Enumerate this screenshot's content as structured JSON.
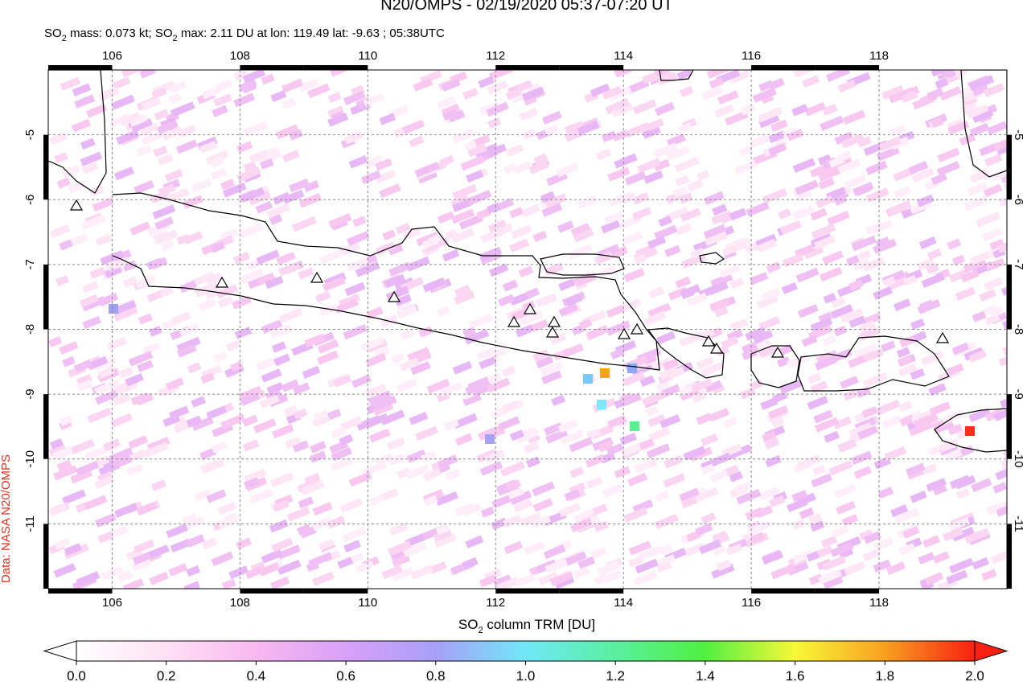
{
  "title": "N20/OMPS - 02/19/2020 05:37-07:20 UT",
  "subtitle": [
    "SO",
    "2",
    " mass: 0.073 kt; SO",
    "2",
    " max: 2.11 DU at lon: 119.49 lat: -9.63 ; 05:38UTC"
  ],
  "map": {
    "xlim": [
      105,
      120
    ],
    "ylim": [
      -12,
      -4
    ],
    "xticks": [
      106,
      108,
      110,
      112,
      114,
      116,
      118
    ],
    "yticks": [
      -5,
      -6,
      -7,
      -8,
      -9,
      -10,
      -11
    ]
  },
  "colorbar": {
    "label": [
      "SO",
      "2",
      " column TRM [DU]"
    ],
    "lim": [
      0,
      2
    ],
    "ticks": [
      {
        "value": 0,
        "label": "0.0"
      },
      {
        "value": 0.2,
        "label": "0.2"
      },
      {
        "value": 0.4,
        "label": "0.4"
      },
      {
        "value": 0.6,
        "label": "0.6"
      },
      {
        "value": 0.8,
        "label": "0.8"
      },
      {
        "value": 1,
        "label": "1.0"
      },
      {
        "value": 1.2,
        "label": "1.2"
      },
      {
        "value": 1.4,
        "label": "1.4"
      },
      {
        "value": 1.6,
        "label": "1.6"
      },
      {
        "value": 1.8,
        "label": "1.8"
      },
      {
        "value": 2,
        "label": "2.0"
      }
    ]
  },
  "credit": "Data: NASA N20/OMPS"
}
